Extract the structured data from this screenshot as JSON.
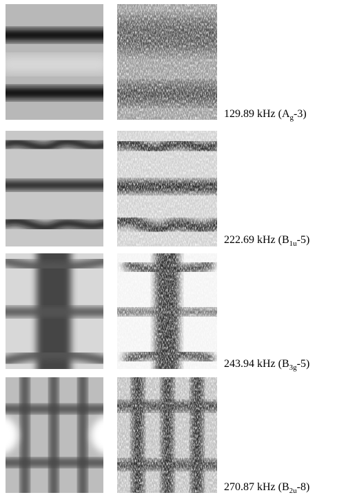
{
  "figure": {
    "rows": [
      {
        "prefix": "129.89 kHz (",
        "symbol": "A",
        "subscript": "g",
        "suffix": "-3)"
      },
      {
        "prefix": "222.69 kHz (",
        "symbol": "B",
        "subscript": "1u",
        "suffix": "-5)"
      },
      {
        "prefix": "243.94 kHz (",
        "symbol": "B",
        "subscript": "3g",
        "suffix": "-5)"
      },
      {
        "prefix": "270.87 kHz (",
        "symbol": "B",
        "subscript": "2u",
        "suffix": "-8)"
      }
    ]
  }
}
